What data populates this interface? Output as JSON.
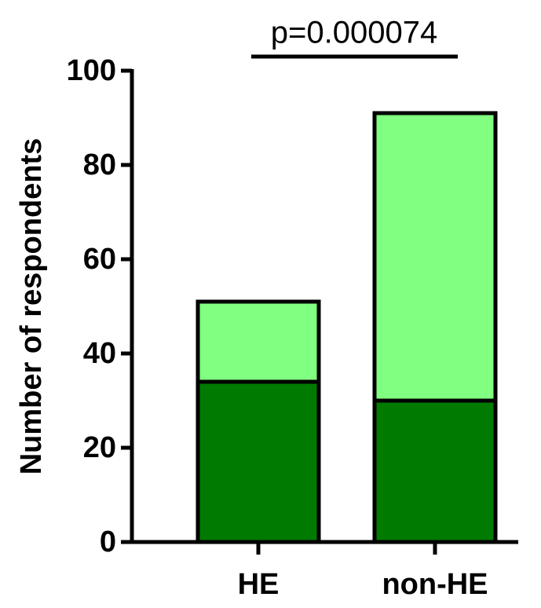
{
  "chart_data": {
    "type": "stacked_bar",
    "y_label": "Number of respondents",
    "annotation": "p=0.000074",
    "categories": [
      "HE",
      "non-HE"
    ],
    "series": [
      {
        "color": "#007a00",
        "values": [
          34,
          30
        ]
      },
      {
        "color": "#80ff80",
        "values": [
          17,
          61
        ]
      }
    ],
    "ylim": [
      0,
      100
    ],
    "yticks": [
      0,
      20,
      40,
      60,
      80,
      100
    ]
  }
}
